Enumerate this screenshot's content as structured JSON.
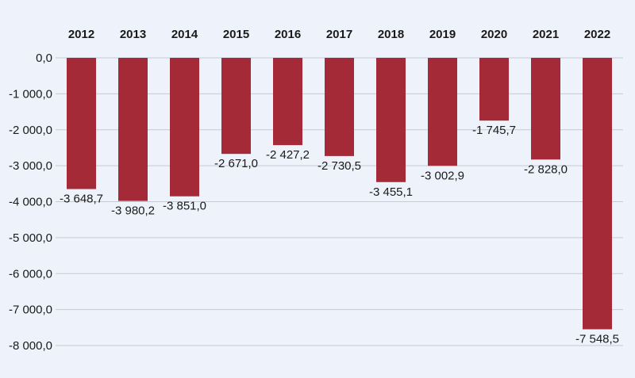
{
  "chart_data": {
    "type": "bar",
    "title": "",
    "xlabel": "",
    "ylabel": "",
    "categories": [
      "2012",
      "2013",
      "2014",
      "2015",
      "2016",
      "2017",
      "2018",
      "2019",
      "2020",
      "2021",
      "2022"
    ],
    "values": [
      -3648.7,
      -3980.2,
      -3851.0,
      -2671.0,
      -2427.2,
      -2730.5,
      -3455.1,
      -3002.9,
      -1745.7,
      -2828.0,
      -7548.5
    ],
    "value_labels": [
      "-3 648,7",
      "-3 980,2",
      "-3 851,0",
      "-2 671,0",
      "-2 427,2",
      "-2 730,5",
      "-3 455,1",
      "-3 002,9",
      "-1 745,7",
      "-2 828,0",
      "-7 548,5"
    ],
    "ylim": [
      -8000,
      0
    ],
    "y_ticks": [
      0,
      -1000,
      -2000,
      -3000,
      -4000,
      -5000,
      -6000,
      -7000,
      -8000
    ],
    "y_tick_labels": [
      "0,0",
      "-1 000,0",
      "-2 000,0",
      "-3 000,0",
      "-4 000,0",
      "-5 000,0",
      "-6 000,0",
      "-7 000,0",
      "-8 000,0"
    ],
    "category_axis_position": "top",
    "grid": true,
    "legend": "none",
    "bar_color": "#a52a38"
  }
}
